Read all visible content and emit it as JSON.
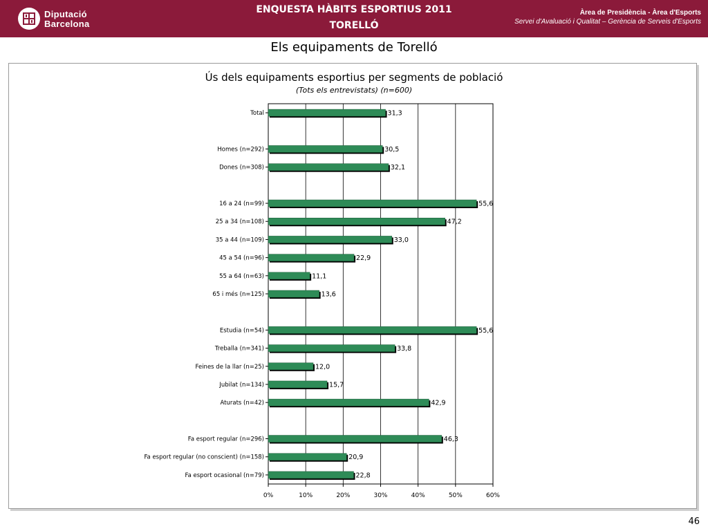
{
  "header": {
    "logo_line1": "Diputació",
    "logo_line2": "Barcelona",
    "title_line1": "ENQUESTA HÀBITS ESPORTIUS 2011",
    "title_line2": "TORELLÓ",
    "dept_line1": "Àrea de Presidència  -  Àrea d'Esports",
    "dept_line2": "Servei d'Avaluació i Qualitat – Gerència de Serveis d'Esports",
    "brand_color": "#8b1a3a"
  },
  "page_title": "Els equipaments de Torelló",
  "page_number": "46",
  "chart_data": {
    "type": "bar",
    "orientation": "horizontal",
    "title": "Ús dels equipaments esportius per segments de població",
    "subtitle": "(Tots els entrevistats) (n=600)",
    "bar_color": "#2e8b57",
    "grid": true,
    "xlim": [
      0,
      60
    ],
    "x_ticks": [
      "0%",
      "10%",
      "20%",
      "30%",
      "40%",
      "50%",
      "60%"
    ],
    "categories": [
      "Total",
      "",
      "Homes (n=292)",
      "Dones (n=308)",
      "",
      "16 a 24 (n=99)",
      "25 a 34 (n=108)",
      "35 a 44 (n=109)",
      "45 a 54 (n=96)",
      "55 a 64 (n=63)",
      "65 i més (n=125)",
      "",
      "Estudia (n=54)",
      "Treballa (n=341)",
      "Feines de la llar (n=25)",
      "Jubilat (n=134)",
      "Aturats (n=42)",
      "",
      "Fa esport regular (n=296)",
      "Fa esport regular (no conscient) (n=158)",
      "Fa esport ocasional (n=79)"
    ],
    "values": [
      31.3,
      null,
      30.5,
      32.1,
      null,
      55.6,
      47.2,
      33.0,
      22.9,
      11.1,
      13.6,
      null,
      55.6,
      33.8,
      12.0,
      15.7,
      42.9,
      null,
      46.3,
      20.9,
      22.8
    ],
    "value_labels": [
      "31,3",
      "",
      "30,5",
      "32,1",
      "",
      "55,6",
      "47,2",
      "33,0",
      "22,9",
      "11,1",
      "13,6",
      "",
      "55,6",
      "33,8",
      "12,0",
      "15,7",
      "42,9",
      "",
      "46,3",
      "20,9",
      "22,8"
    ]
  }
}
